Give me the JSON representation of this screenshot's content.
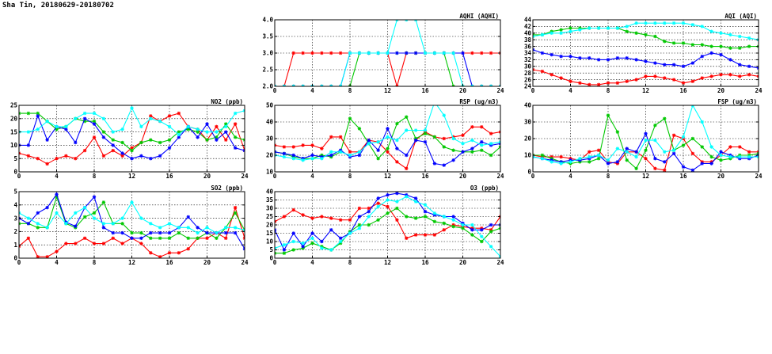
{
  "page": {
    "title": "Sha Tin, 20180629-20180702"
  },
  "colors": {
    "day1": "#ff0000",
    "day2": "#00c800",
    "day3": "#0000ff",
    "day4": "#00ffff"
  },
  "chart_data": [
    {
      "id": "no2",
      "type": "line",
      "title": "NO2 (ppb)",
      "xlim": [
        0,
        24
      ],
      "ylim": [
        0,
        25
      ],
      "xticks": [
        0,
        4,
        8,
        12,
        16,
        20,
        24
      ],
      "yticks": [
        0,
        5,
        10,
        15,
        20,
        25
      ],
      "ytick_labels": [
        "0",
        "5",
        "10",
        "15",
        "20",
        "25"
      ],
      "grid": true,
      "x": [
        0,
        1,
        2,
        3,
        4,
        5,
        6,
        7,
        8,
        9,
        10,
        11,
        12,
        13,
        14,
        15,
        16,
        17,
        18,
        19,
        20,
        21,
        22,
        23,
        24
      ],
      "series": [
        {
          "color": "#ff0000",
          "values": [
            7,
            6,
            5,
            3,
            5,
            6,
            5,
            8,
            13,
            6,
            8,
            6,
            9,
            11,
            21,
            19,
            21,
            22,
            17,
            16,
            12,
            17,
            12,
            18,
            8
          ]
        },
        {
          "color": "#00c800",
          "values": [
            22,
            22,
            22,
            19,
            16,
            17,
            20,
            19,
            19,
            15,
            12,
            11,
            8,
            11,
            12,
            11,
            12,
            15,
            16,
            15,
            12,
            13,
            18,
            13,
            12
          ]
        },
        {
          "color": "#0000ff",
          "values": [
            10,
            10,
            21,
            12,
            17,
            16,
            11,
            20,
            18,
            13,
            10,
            7,
            5,
            6,
            5,
            6,
            9,
            13,
            17,
            13,
            18,
            12,
            15,
            9,
            8
          ]
        },
        {
          "color": "#00ffff",
          "values": [
            15,
            15,
            16,
            19,
            17,
            17,
            20,
            22,
            22,
            20,
            15,
            16,
            24,
            17,
            20,
            19,
            17,
            14,
            17,
            16,
            15,
            15,
            17,
            22,
            23
          ]
        }
      ]
    },
    {
      "id": "so2",
      "type": "line",
      "title": "SO2 (ppb)",
      "xlim": [
        0,
        24
      ],
      "ylim": [
        0,
        5
      ],
      "xticks": [
        0,
        4,
        8,
        12,
        16,
        20,
        24
      ],
      "yticks": [
        0,
        1,
        2,
        3,
        4,
        5
      ],
      "ytick_labels": [
        "0",
        "1",
        "2",
        "3",
        "4",
        "5"
      ],
      "grid": true,
      "x": [
        0,
        1,
        2,
        3,
        4,
        5,
        6,
        7,
        8,
        9,
        10,
        11,
        12,
        13,
        14,
        15,
        16,
        17,
        18,
        19,
        20,
        21,
        22,
        23,
        24
      ],
      "series": [
        {
          "color": "#ff0000",
          "values": [
            0.9,
            1.5,
            0.1,
            0.1,
            0.5,
            1.1,
            1.1,
            1.5,
            1.1,
            1.1,
            1.5,
            1.1,
            1.5,
            1.1,
            0.4,
            0.1,
            0.4,
            0.4,
            0.7,
            1.5,
            1.5,
            1.9,
            1.5,
            3.8,
            1.5
          ]
        },
        {
          "color": "#00c800",
          "values": [
            2.6,
            2.6,
            2.3,
            2.3,
            4.6,
            2.6,
            2.3,
            3.1,
            3.4,
            4.2,
            2.6,
            2.6,
            1.9,
            1.9,
            1.5,
            1.5,
            1.5,
            1.9,
            1.5,
            1.5,
            1.9,
            1.5,
            2.3,
            3.4,
            2.1
          ]
        },
        {
          "color": "#0000ff",
          "values": [
            3.0,
            2.6,
            3.4,
            3.8,
            4.8,
            2.7,
            2.4,
            3.8,
            4.6,
            2.3,
            1.9,
            1.9,
            1.5,
            1.5,
            1.9,
            1.9,
            1.9,
            2.3,
            3.1,
            2.3,
            1.9,
            1.9,
            1.9,
            1.9,
            0.7
          ]
        },
        {
          "color": "#00ffff",
          "values": [
            3.4,
            3.0,
            2.6,
            2.3,
            3.4,
            2.6,
            3.4,
            3.8,
            3.0,
            2.6,
            2.6,
            3.0,
            4.2,
            3.0,
            2.6,
            2.3,
            2.6,
            2.3,
            2.3,
            1.9,
            2.3,
            1.9,
            2.3,
            2.3,
            2.1
          ]
        }
      ]
    },
    {
      "id": "aqhi",
      "type": "line",
      "title": "AQHI (AQHI)",
      "xlim": [
        0,
        24
      ],
      "ylim": [
        2,
        4
      ],
      "xticks": [
        0,
        4,
        8,
        12,
        16,
        20,
        24
      ],
      "yticks": [
        2,
        2.5,
        3,
        3.5,
        4
      ],
      "ytick_labels": [
        "2.0",
        "2.5",
        "3.0",
        "3.5",
        "4.0"
      ],
      "grid": true,
      "x": [
        0,
        1,
        2,
        3,
        4,
        5,
        6,
        7,
        8,
        9,
        10,
        11,
        12,
        13,
        14,
        15,
        16,
        17,
        18,
        19,
        20,
        21,
        22,
        23,
        24
      ],
      "series": [
        {
          "color": "#ff0000",
          "values": [
            2,
            2,
            3,
            3,
            3,
            3,
            3,
            3,
            3,
            3,
            3,
            3,
            3,
            2,
            3,
            3,
            3,
            3,
            3,
            3,
            3,
            3,
            3,
            3,
            3
          ]
        },
        {
          "color": "#00c800",
          "values": [
            2,
            2,
            2,
            2,
            2,
            2,
            2,
            2,
            2,
            3,
            3,
            3,
            3,
            3,
            3,
            3,
            3,
            3,
            3,
            2,
            2,
            2,
            2,
            2,
            2
          ]
        },
        {
          "color": "#0000ff",
          "values": [
            2,
            2,
            2,
            2,
            2,
            2,
            2,
            2,
            3,
            3,
            3,
            3,
            3,
            3,
            3,
            3,
            3,
            3,
            3,
            3,
            3,
            2,
            2,
            2,
            2
          ]
        },
        {
          "color": "#00ffff",
          "values": [
            2,
            2,
            2,
            2,
            2,
            2,
            2,
            2,
            3,
            3,
            3,
            3,
            3,
            4,
            4,
            4,
            3,
            3,
            3,
            3,
            2,
            2,
            2,
            2,
            2
          ]
        }
      ]
    },
    {
      "id": "rsp",
      "type": "line",
      "title": "RSP (ug/m3)",
      "xlim": [
        0,
        24
      ],
      "ylim": [
        10,
        50
      ],
      "xticks": [
        0,
        4,
        8,
        12,
        16,
        20,
        24
      ],
      "yticks": [
        10,
        20,
        30,
        40,
        50
      ],
      "ytick_labels": [
        "10",
        "20",
        "30",
        "40",
        "50"
      ],
      "grid": true,
      "x": [
        0,
        1,
        2,
        3,
        4,
        5,
        6,
        7,
        8,
        9,
        10,
        11,
        12,
        13,
        14,
        15,
        16,
        17,
        18,
        19,
        20,
        21,
        22,
        23,
        24
      ],
      "series": [
        {
          "color": "#ff0000",
          "values": [
            26,
            25,
            25,
            26,
            26,
            24,
            31,
            31,
            22,
            22,
            29,
            28,
            22,
            16,
            12,
            29,
            34,
            31,
            30,
            31,
            32,
            37,
            37,
            33,
            34
          ]
        },
        {
          "color": "#00c800",
          "values": [
            22,
            21,
            19,
            18,
            18,
            20,
            19,
            22,
            42,
            36,
            27,
            18,
            24,
            39,
            43,
            30,
            33,
            31,
            25,
            23,
            22,
            22,
            23,
            20,
            25
          ]
        },
        {
          "color": "#0000ff",
          "values": [
            22,
            21,
            20,
            18,
            20,
            19,
            20,
            23,
            19,
            20,
            29,
            23,
            36,
            24,
            20,
            29,
            28,
            15,
            14,
            17,
            22,
            24,
            28,
            26,
            27
          ]
        },
        {
          "color": "#00ffff",
          "values": [
            20,
            19,
            18,
            17,
            18,
            18,
            22,
            22,
            20,
            22,
            27,
            28,
            31,
            29,
            35,
            35,
            35,
            52,
            44,
            30,
            27,
            29,
            26,
            27,
            28
          ]
        }
      ]
    },
    {
      "id": "o3",
      "type": "line",
      "title": "O3 (ppb)",
      "xlim": [
        0,
        24
      ],
      "ylim": [
        0,
        40
      ],
      "xticks": [
        0,
        4,
        8,
        12,
        16,
        20,
        24
      ],
      "yticks": [
        0,
        5,
        10,
        15,
        20,
        25,
        30,
        35,
        40
      ],
      "ytick_labels": [
        "0",
        "5",
        "10",
        "15",
        "20",
        "25",
        "30",
        "35",
        "40"
      ],
      "grid": true,
      "x": [
        0,
        1,
        2,
        3,
        4,
        5,
        6,
        7,
        8,
        9,
        10,
        11,
        12,
        13,
        14,
        15,
        16,
        17,
        18,
        19,
        20,
        21,
        22,
        23,
        24
      ],
      "series": [
        {
          "color": "#ff0000",
          "values": [
            22,
            25,
            29,
            26,
            24,
            25,
            24,
            23,
            23,
            30,
            30,
            33,
            31,
            23,
            12,
            14,
            14,
            14,
            17,
            20,
            19,
            18,
            18,
            17,
            25
          ]
        },
        {
          "color": "#00c800",
          "values": [
            3,
            3,
            5,
            6,
            9,
            7,
            5,
            9,
            16,
            20,
            20,
            23,
            27,
            30,
            25,
            24,
            25,
            22,
            21,
            19,
            18,
            14,
            10,
            16,
            18
          ]
        },
        {
          "color": "#0000ff",
          "values": [
            17,
            5,
            15,
            7,
            15,
            10,
            17,
            12,
            15,
            25,
            28,
            36,
            38,
            39,
            38,
            36,
            28,
            26,
            25,
            25,
            21,
            17,
            17,
            20,
            20
          ]
        },
        {
          "color": "#00ffff",
          "values": [
            6,
            8,
            10,
            9,
            12,
            6,
            5,
            10,
            15,
            18,
            25,
            31,
            35,
            34,
            37,
            34,
            32,
            27,
            25,
            23,
            20,
            20,
            13,
            7,
            1
          ]
        }
      ]
    },
    {
      "id": "aqi",
      "type": "line",
      "title": "AQI (AQI)",
      "xlim": [
        0,
        24
      ],
      "ylim": [
        24,
        44
      ],
      "xticks": [
        0,
        4,
        8,
        12,
        16,
        20,
        24
      ],
      "yticks": [
        24,
        26,
        28,
        30,
        32,
        34,
        36,
        38,
        40,
        42,
        44
      ],
      "ytick_labels": [
        "24",
        "26",
        "28",
        "30",
        "32",
        "34",
        "36",
        "38",
        "40",
        "42",
        "44"
      ],
      "grid": true,
      "x": [
        0,
        1,
        2,
        3,
        4,
        5,
        6,
        7,
        8,
        9,
        10,
        11,
        12,
        13,
        14,
        15,
        16,
        17,
        18,
        19,
        20,
        21,
        22,
        23,
        24
      ],
      "series": [
        {
          "color": "#ff0000",
          "values": [
            29,
            28.5,
            27.5,
            26.5,
            25.5,
            25,
            24.5,
            24.5,
            25,
            25,
            25.5,
            26,
            27,
            27,
            26.5,
            26,
            25,
            25.5,
            26.5,
            27,
            27.5,
            27.5,
            27,
            27.5,
            27
          ]
        },
        {
          "color": "#00c800",
          "values": [
            39.5,
            39.5,
            40.5,
            41,
            41.5,
            41.5,
            41.5,
            41.5,
            41.5,
            41.5,
            40.5,
            40,
            39.5,
            39,
            37.5,
            37,
            37,
            36.5,
            36.5,
            36,
            36,
            35.5,
            35.5,
            36,
            36
          ]
        },
        {
          "color": "#0000ff",
          "values": [
            35,
            34,
            33.5,
            33,
            33,
            32.5,
            32.5,
            32,
            32,
            32.5,
            32.5,
            32,
            31.5,
            31,
            30.5,
            30.5,
            30,
            31,
            33,
            34,
            33.5,
            32,
            30.5,
            30,
            29.5
          ]
        },
        {
          "color": "#00ffff",
          "values": [
            39,
            39.5,
            40,
            40,
            40.5,
            41,
            41.5,
            41.5,
            41.5,
            41.5,
            42,
            43,
            43,
            43,
            43,
            43,
            43,
            42.5,
            42,
            40.5,
            40,
            39.5,
            39,
            38.5,
            38
          ]
        }
      ]
    },
    {
      "id": "fsp",
      "type": "line",
      "title": "FSP (ug/m3)",
      "xlim": [
        0,
        24
      ],
      "ylim": [
        0,
        40
      ],
      "xticks": [
        0,
        4,
        8,
        12,
        16,
        20,
        24
      ],
      "yticks": [
        0,
        10,
        20,
        30,
        40
      ],
      "ytick_labels": [
        "0",
        "10",
        "20",
        "30",
        "40"
      ],
      "grid": true,
      "x": [
        0,
        1,
        2,
        3,
        4,
        5,
        6,
        7,
        8,
        9,
        10,
        11,
        12,
        13,
        14,
        15,
        16,
        17,
        18,
        19,
        20,
        21,
        22,
        23,
        24
      ],
      "series": [
        {
          "color": "#ff0000",
          "values": [
            10,
            9,
            9,
            9,
            8,
            7,
            12,
            13,
            6,
            5,
            12,
            12,
            8,
            2,
            1,
            22,
            20,
            11,
            6,
            6,
            10,
            15,
            15,
            12,
            12
          ]
        },
        {
          "color": "#00c800",
          "values": [
            10,
            10,
            8,
            6,
            5,
            6,
            6,
            8,
            34,
            24,
            7,
            2,
            13,
            28,
            32,
            13,
            16,
            20,
            15,
            9,
            7,
            8,
            10,
            10,
            11
          ]
        },
        {
          "color": "#0000ff",
          "values": [
            9,
            8,
            7,
            6,
            7,
            7,
            8,
            10,
            5,
            6,
            14,
            12,
            23,
            8,
            6,
            11,
            3,
            1,
            5,
            5,
            12,
            10,
            8,
            8,
            10
          ]
        },
        {
          "color": "#00ffff",
          "values": [
            9,
            8,
            6,
            5,
            6,
            8,
            9,
            10,
            7,
            14,
            12,
            9,
            19,
            19,
            12,
            13,
            21,
            40,
            30,
            15,
            10,
            9,
            9,
            9,
            9
          ]
        }
      ]
    }
  ]
}
